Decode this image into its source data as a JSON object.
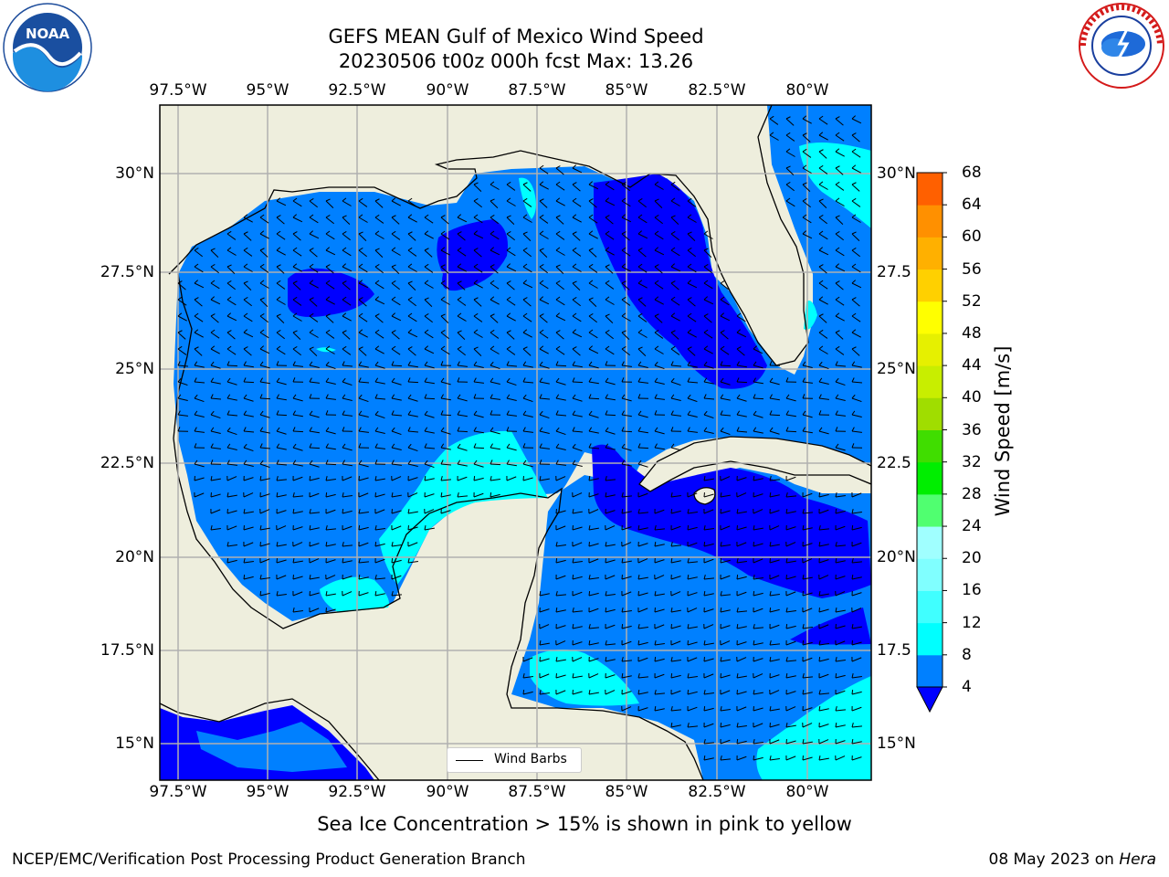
{
  "header": {
    "title_line1": "GEFS MEAN Gulf of Mexico Wind Speed",
    "title_line2": "20230506 t00z 000h fcst   Max: 13.26"
  },
  "logos": {
    "left": {
      "icon": "noaa-logo",
      "text": "NOAA"
    },
    "right": {
      "icon": "national-weather-service-logo",
      "text": "NATIONAL WEATHER SERVICE"
    }
  },
  "map": {
    "lon_labels": [
      "97.5°W",
      "95°W",
      "92.5°W",
      "90°W",
      "87.5°W",
      "85°W",
      "82.5°W",
      "80°W"
    ],
    "lat_labels": [
      "30°N",
      "27.5°N",
      "25°N",
      "22.5°N",
      "20°N",
      "17.5°N",
      "15°N"
    ],
    "right_lat_labels": [
      "30°N",
      "27.5",
      "25°N",
      "22.5",
      "20°N",
      "17.5",
      "15°N"
    ],
    "lon_range": [
      -98,
      -78.2
    ],
    "lat_range": [
      14,
      31.6
    ],
    "colors": {
      "land": "#eeeedd",
      "ocean_default": "#0080ff",
      "grid": "#b0b0b0"
    },
    "legend_label": "Wind Barbs"
  },
  "colorbar": {
    "label": "Wind Speed [m/s]",
    "ticks": [
      "4",
      "8",
      "12",
      "16",
      "20",
      "24",
      "28",
      "32",
      "36",
      "40",
      "44",
      "48",
      "52",
      "56",
      "60",
      "64",
      "68"
    ],
    "colors": [
      "#0080ff",
      "#00ffff",
      "#40ffff",
      "#80ffff",
      "#a0ffff",
      "#50ff70",
      "#00ee00",
      "#40dd00",
      "#a0dd00",
      "#c8ee00",
      "#e6f000",
      "#ffff00",
      "#ffd000",
      "#ffb000",
      "#ff9000",
      "#ff6000",
      "#ff4000",
      "#ff0000"
    ],
    "under_color": "#0000ff"
  },
  "note": "Sea Ice Concentration > 15% is shown in pink to yellow",
  "footer": {
    "left": "NCEP/EMC/Verification Post Processing Product Generation Branch",
    "right_date": "08 May 2023 on ",
    "right_machine": "Hera"
  }
}
